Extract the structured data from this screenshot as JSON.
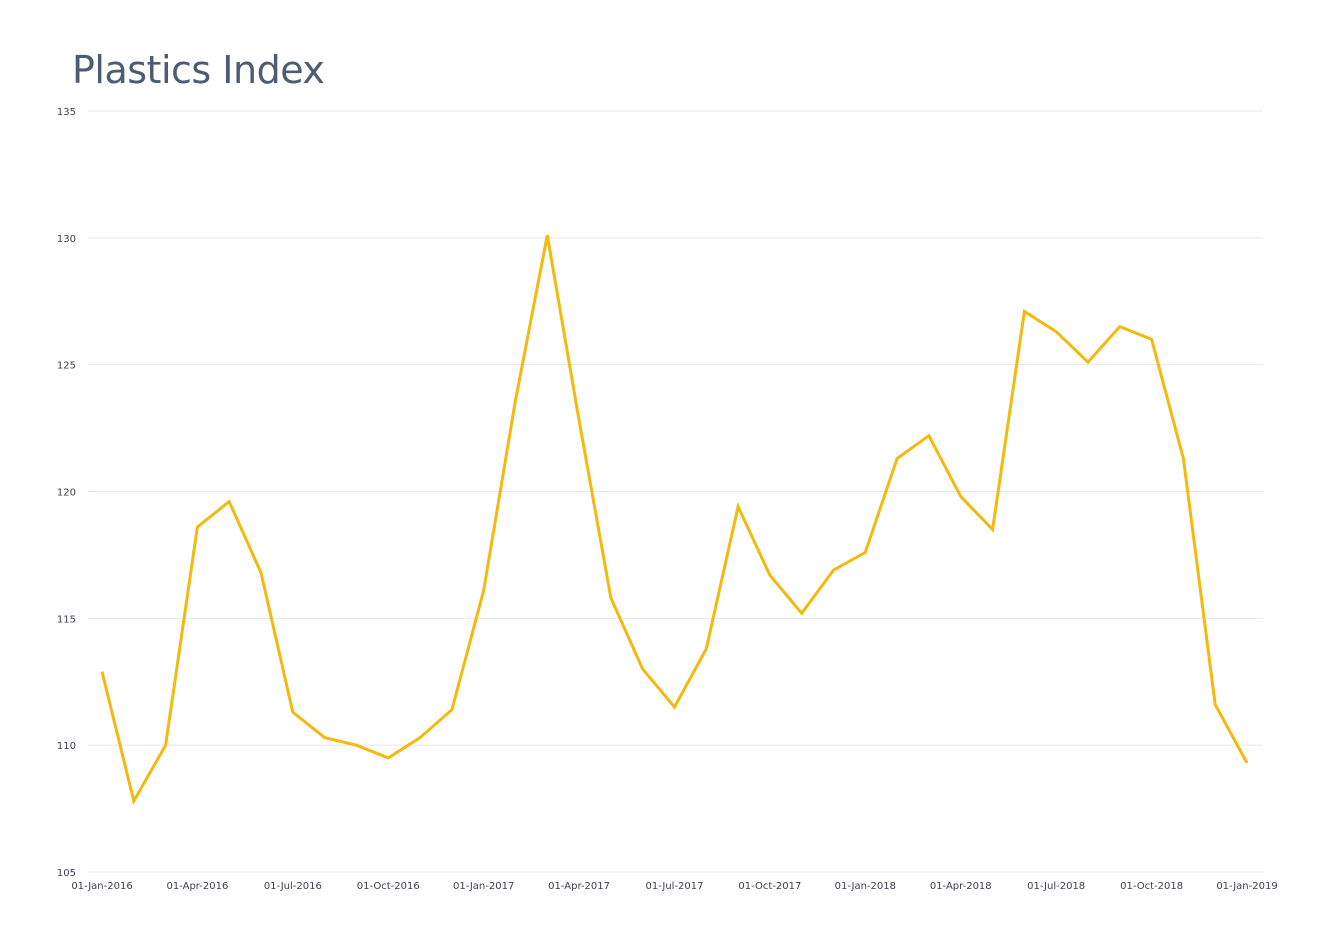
{
  "chart_data": {
    "type": "line",
    "title": "Plastics Index",
    "xlabel": "",
    "ylabel": "",
    "ylim": [
      105,
      135
    ],
    "yticks": [
      105,
      110,
      115,
      120,
      125,
      130,
      135
    ],
    "xticks": [
      "01-Jan-2016",
      "01-Apr-2016",
      "01-Jul-2016",
      "01-Oct-2016",
      "01-Jan-2017",
      "01-Apr-2017",
      "01-Jul-2017",
      "01-Oct-2017",
      "01-Jan-2018",
      "01-Apr-2018",
      "01-Jul-2018",
      "01-Oct-2018",
      "01-Jan-2019"
    ],
    "grid": true,
    "legend": "none",
    "series": [
      {
        "name": "Plastics Index",
        "color": "#f2b90f",
        "x": [
          "2016-01",
          "2016-02",
          "2016-03",
          "2016-04",
          "2016-05",
          "2016-06",
          "2016-07",
          "2016-08",
          "2016-09",
          "2016-10",
          "2016-11",
          "2016-12",
          "2017-01",
          "2017-02",
          "2017-03",
          "2017-04",
          "2017-05",
          "2017-06",
          "2017-07",
          "2017-08",
          "2017-09",
          "2017-10",
          "2017-11",
          "2017-12",
          "2018-01",
          "2018-02",
          "2018-03",
          "2018-04",
          "2018-05",
          "2018-06",
          "2018-07",
          "2018-08",
          "2018-09",
          "2018-10",
          "2018-11",
          "2018-12",
          "2019-01"
        ],
        "values": [
          112.9,
          107.8,
          110.0,
          118.6,
          119.6,
          116.8,
          111.3,
          110.3,
          110.0,
          109.5,
          110.3,
          111.4,
          116.1,
          123.6,
          130.1,
          122.8,
          115.8,
          113.0,
          111.5,
          113.8,
          119.4,
          116.7,
          115.2,
          116.9,
          117.6,
          121.3,
          122.2,
          119.8,
          118.5,
          127.1,
          126.3,
          125.1,
          126.5,
          126.0,
          121.3,
          111.6,
          109.3
        ]
      }
    ]
  },
  "colors": {
    "line": "#f2b90f",
    "grid": "#ece4e8",
    "title": "#4d5b73",
    "tick": "#3a4150"
  }
}
